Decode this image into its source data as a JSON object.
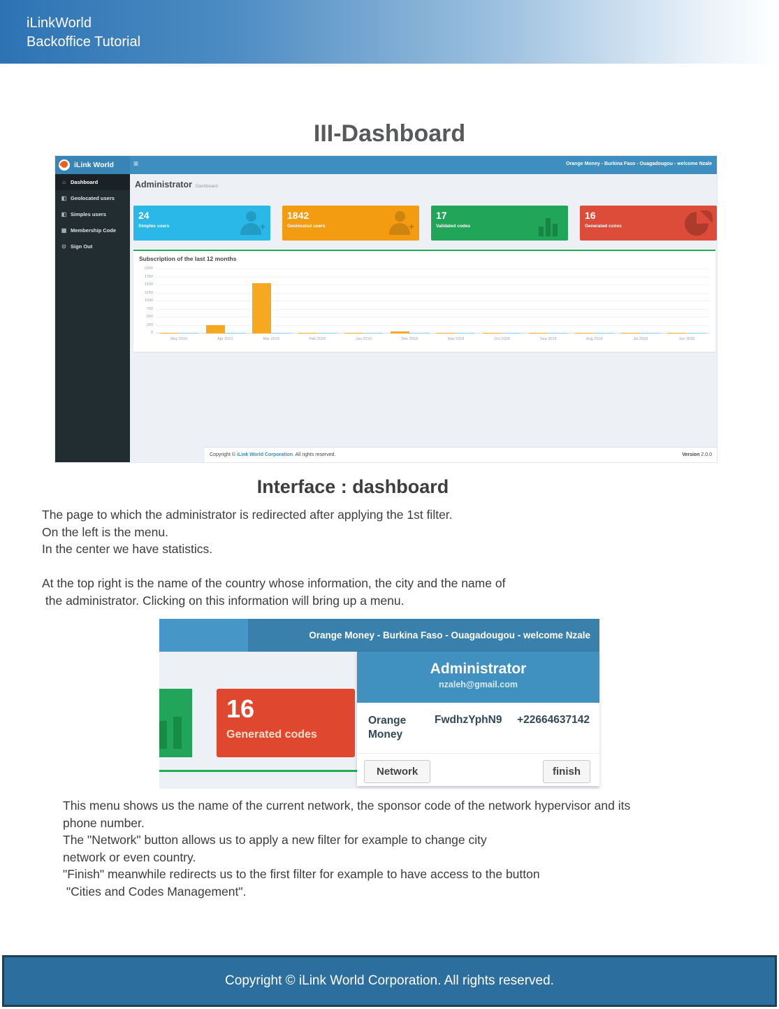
{
  "doc": {
    "header": {
      "line1": "iLinkWorld",
      "line2": "Backoffice Tutorial"
    },
    "title": "III-Dashboard",
    "subtitle": "Interface : dashboard",
    "paragraph1": [
      "The page to which the administrator is redirected after applying the 1st filter.",
      "On the left is the menu.",
      "In the center we have statistics."
    ],
    "paragraph2": [
      "At the top right is the name of the country whose information, the city and the name of",
      " the administrator. Clicking on this information will bring up a menu."
    ],
    "paragraph3": [
      "This menu shows us the name of the current network, the sponsor code of the network hypervisor and its",
      "phone number.",
      "The \"Network\" button allows us to apply a new filter for example to change city",
      "network or even country.",
      "\"Finish\" meanwhile redirects us to the first filter for example to have access to the button",
      " \"Cities and Codes Management\"."
    ],
    "footer": "Copyright © iLink World Corporation. All rights reserved."
  },
  "dashboard": {
    "navbar": {
      "brand": "iLink World",
      "menu_icon": "≡",
      "user_info": "Orange Money - Burkina Faso - Ouagadougou - welcome Nzale"
    },
    "sidebar": {
      "items": [
        {
          "label": "Dashboard",
          "icon": "home-icon",
          "active": true
        },
        {
          "label": "Geolocated users",
          "icon": "users-icon",
          "active": false
        },
        {
          "label": "Simples users",
          "icon": "users-icon",
          "active": false
        },
        {
          "label": "Membership Code",
          "icon": "table-icon",
          "active": false
        },
        {
          "label": "Sign Out",
          "icon": "power-icon",
          "active": false
        }
      ]
    },
    "page_heading": {
      "title": "Administrator",
      "subtitle": "Dashboard"
    },
    "cards": [
      {
        "value": "24",
        "label": "Simples users",
        "color": "#29b8e8",
        "icon": "user-plus-icon"
      },
      {
        "value": "1842",
        "label": "Geolocated users",
        "color": "#f39c12",
        "icon": "user-plus-icon"
      },
      {
        "value": "17",
        "label": "Validated codes",
        "color": "#21a558",
        "icon": "bar-chart-icon"
      },
      {
        "value": "16",
        "label": "Generated codes",
        "color": "#dd4b39",
        "icon": "pie-chart-icon"
      }
    ],
    "footer": {
      "copyright_prefix": "Copyright © ",
      "link": "iLink World Corporation",
      "copyright_suffix": ". All rights reserved.",
      "version_label": "Version",
      "version": " 2.0.0"
    }
  },
  "chart_data": {
    "type": "bar",
    "title": "Subscription of the last 12 months",
    "categories": [
      "May 2019",
      "Apr 2019",
      "Mar 2019",
      "Feb 2019",
      "Jan 2019",
      "Dec 2018",
      "Nov 2018",
      "Oct 2018",
      "Sep 2018",
      "Aug 2018",
      "Jul 2018",
      "Jun 2018"
    ],
    "series": [
      {
        "name": "orange-series",
        "color": "#f6a821",
        "values": [
          10,
          270,
          1560,
          20,
          10,
          60,
          12,
          10,
          10,
          12,
          10,
          10
        ]
      },
      {
        "name": "blue-series",
        "color": "#7ecdf4",
        "values": [
          12,
          15,
          25,
          18,
          10,
          18,
          14,
          12,
          10,
          12,
          10,
          12
        ]
      }
    ],
    "ylim": [
      0,
      2000
    ],
    "yticks": [
      2000,
      1750,
      1500,
      1250,
      1000,
      750,
      500,
      250,
      0
    ],
    "grid": true,
    "legend_position": "none",
    "xlabel": "",
    "ylabel": ""
  },
  "user_menu_shot": {
    "navbar_text": "Orange Money - Burkina Faso - Ouagadougou - welcome Nzale",
    "card": {
      "value": "16",
      "label": "Generated codes",
      "color": "#e0472f"
    },
    "dropdown": {
      "title": "Administrator",
      "email": "nzaleh@gmail.com",
      "network": "Orange Money",
      "sponsor_code": "FwdhzYphN9",
      "phone": "+22664637142",
      "buttons": [
        {
          "label": "Network"
        },
        {
          "label": "finish"
        }
      ]
    }
  },
  "colors": {
    "navbar_blue": "#3e8ec0",
    "sidebar_dark": "#222d32",
    "accent_green": "#1fae54",
    "footer_blue": "#2c6f9e"
  }
}
